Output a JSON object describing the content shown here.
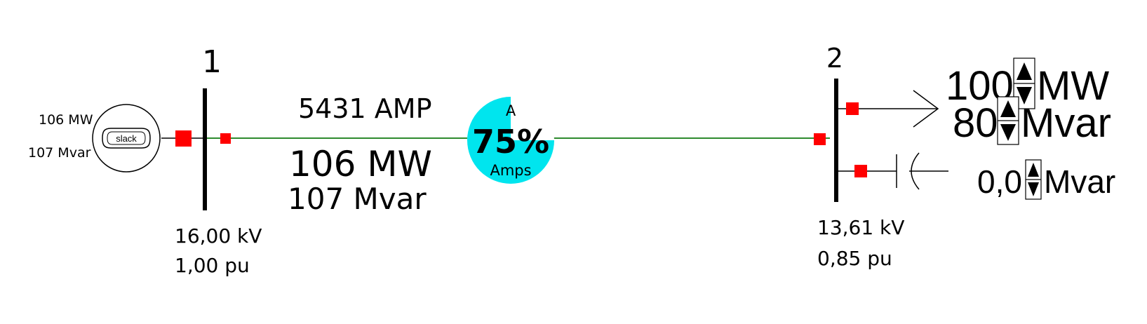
{
  "colors": {
    "line": "#2e8b2e",
    "breaker": "#ff0000",
    "gauge_fill": "#00e5ee",
    "bus": "#000000"
  },
  "bus1": {
    "number": "1",
    "voltage_kv": "16,00 kV",
    "voltage_pu": "1,00 pu"
  },
  "bus2": {
    "number": "2",
    "voltage_kv": "13,61 kV",
    "voltage_pu": "0,85 pu"
  },
  "generator": {
    "label": "slack",
    "mw": "106 MW",
    "mvar": "107 Mvar"
  },
  "line": {
    "amps": "5431 AMP",
    "mw": "106 MW",
    "mvar": "107 Mvar",
    "gauge": {
      "top_label": "A",
      "percent_label": "75%",
      "bottom_label": "Amps",
      "loading_fraction": 0.75
    }
  },
  "load": {
    "mw_value": "100",
    "mw_unit": "MW",
    "mvar_value": "80",
    "mvar_unit": "Mvar"
  },
  "shunt": {
    "mvar_value": "0,0",
    "mvar_unit": "Mvar"
  },
  "icons": [
    "slack-generator-icon",
    "breaker-icon",
    "load-arrow-icon",
    "capacitor-icon",
    "spinner-icon"
  ]
}
